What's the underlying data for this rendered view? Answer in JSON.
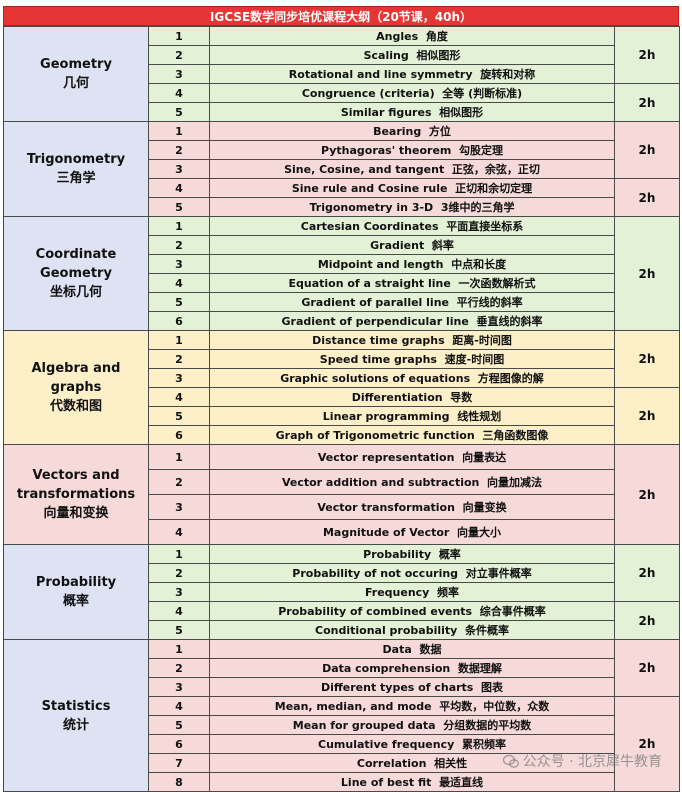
{
  "title": "IGCSE数学同步培优课程大纲（20节课，40h）",
  "watermark": "公众号 · 北京犀牛教育",
  "colors": {
    "blue": "#dde3f3",
    "pink": "#f6d9d9",
    "green": "#e3f2d7",
    "yellow": "#fdf0c9",
    "header_red": "#e53535"
  },
  "sections": [
    {
      "name_en": "Geometry",
      "name_cn": "几何",
      "color": "blue",
      "row_color": "green",
      "rows": [
        {
          "num": "1",
          "en": "Angles",
          "cn": "角度"
        },
        {
          "num": "2",
          "en": "Scaling",
          "cn": "相似图形"
        },
        {
          "num": "3",
          "en": "Rotational and line symmetry",
          "cn": "旋转和对称"
        },
        {
          "num": "4",
          "en": "Congruence (criteria)",
          "cn": "全等 (判断标准)"
        },
        {
          "num": "5",
          "en": "Similar figures",
          "cn": "相似图形"
        }
      ],
      "hours": [
        {
          "label": "2h",
          "span": 3
        },
        {
          "label": "2h",
          "span": 2
        }
      ]
    },
    {
      "name_en": "Trigonometry",
      "name_cn": "三角学",
      "color": "blue",
      "row_color": "pink",
      "rows": [
        {
          "num": "1",
          "en": "Bearing",
          "cn": "方位"
        },
        {
          "num": "2",
          "en": "Pythagoras' theorem",
          "cn": "勾股定理"
        },
        {
          "num": "3",
          "en": "Sine, Cosine, and tangent",
          "cn": "正弦，余弦，正切"
        },
        {
          "num": "4",
          "en": "Sine rule and Cosine rule",
          "cn": "正切和余切定理"
        },
        {
          "num": "5",
          "en": "Trigonometry in 3-D",
          "cn": "3维中的三角学"
        }
      ],
      "hours": [
        {
          "label": "2h",
          "span": 3
        },
        {
          "label": "2h",
          "span": 2
        }
      ]
    },
    {
      "name_en": "Coordinate Geometry",
      "name_cn": "坐标几何",
      "color": "blue",
      "row_color": "green",
      "rows": [
        {
          "num": "1",
          "en": "Cartesian Coordinates",
          "cn": "平面直接坐标系"
        },
        {
          "num": "2",
          "en": "Gradient",
          "cn": "斜率"
        },
        {
          "num": "3",
          "en": "Midpoint and length",
          "cn": "中点和长度"
        },
        {
          "num": "4",
          "en": "Equation of a straight line",
          "cn": "一次函数解析式"
        },
        {
          "num": "5",
          "en": "Gradient of parallel line",
          "cn": "平行线的斜率"
        },
        {
          "num": "6",
          "en": "Gradient of perpendicular line",
          "cn": "垂直线的斜率"
        }
      ],
      "hours": [
        {
          "label": "2h",
          "span": 6
        }
      ]
    },
    {
      "name_en": "Algebra and graphs",
      "name_cn": "代数和图",
      "color": "yellow",
      "row_color": "yellow",
      "rows": [
        {
          "num": "1",
          "en": "Distance  time graphs",
          "cn": "距离-时间图"
        },
        {
          "num": "2",
          "en": "Speed  time graphs",
          "cn": "速度-时间图"
        },
        {
          "num": "3",
          "en": "Graphic solutions of equations",
          "cn": "方程图像的解"
        },
        {
          "num": "4",
          "en": "Differentiation",
          "cn": "导数"
        },
        {
          "num": "5",
          "en": "Linear programming",
          "cn": "线性规划"
        },
        {
          "num": "6",
          "en": "Graph of Trigonometric function",
          "cn": "三角函数图像"
        }
      ],
      "hours": [
        {
          "label": "2h",
          "span": 3
        },
        {
          "label": "2h",
          "span": 3
        }
      ]
    },
    {
      "name_en": "Vectors and transformations",
      "name_cn": "向量和变换",
      "color": "pink",
      "row_color": "pink",
      "rows": [
        {
          "num": "1",
          "en": "Vector representation",
          "cn": "向量表达"
        },
        {
          "num": "2",
          "en": "Vector addition and subtraction",
          "cn": "向量加减法"
        },
        {
          "num": "3",
          "en": "Vector transformation",
          "cn": "向量变换"
        },
        {
          "num": "4",
          "en": "Magnitude of Vector",
          "cn": "向量大小"
        }
      ],
      "hours": [
        {
          "label": "2h",
          "span": 4
        }
      ]
    },
    {
      "name_en": "Probability",
      "name_cn": "概率",
      "color": "blue",
      "row_color": "green",
      "rows": [
        {
          "num": "1",
          "en": "Probability",
          "cn": "概率"
        },
        {
          "num": "2",
          "en": "Probability of not occuring",
          "cn": "对立事件概率"
        },
        {
          "num": "3",
          "en": "Frequency",
          "cn": "频率"
        },
        {
          "num": "4",
          "en": "Probability of combined events",
          "cn": "综合事件概率"
        },
        {
          "num": "5",
          "en": "Conditional probability",
          "cn": "条件概率"
        }
      ],
      "hours": [
        {
          "label": "2h",
          "span": 3
        },
        {
          "label": "2h",
          "span": 2
        }
      ]
    },
    {
      "name_en": "Statistics",
      "name_cn": "统计",
      "color": "blue",
      "row_color": "pink",
      "rows": [
        {
          "num": "1",
          "en": "Data",
          "cn": "数据"
        },
        {
          "num": "2",
          "en": "Data comprehension",
          "cn": "数据理解"
        },
        {
          "num": "3",
          "en": "Different types of charts",
          "cn": "图表"
        },
        {
          "num": "4",
          "en": "Mean, median, and mode",
          "cn": "平均数，中位数，众数"
        },
        {
          "num": "5",
          "en": "Mean for grouped data",
          "cn": "分组数据的平均数"
        },
        {
          "num": "6",
          "en": "Cumulative frequency",
          "cn": "累积频率"
        },
        {
          "num": "7",
          "en": "Correlation",
          "cn": "相关性"
        },
        {
          "num": "8",
          "en": "Line of best fit",
          "cn": "最适直线"
        }
      ],
      "hours": [
        {
          "label": "2h",
          "span": 3
        },
        {
          "label": "2h",
          "span": 5
        }
      ]
    }
  ]
}
